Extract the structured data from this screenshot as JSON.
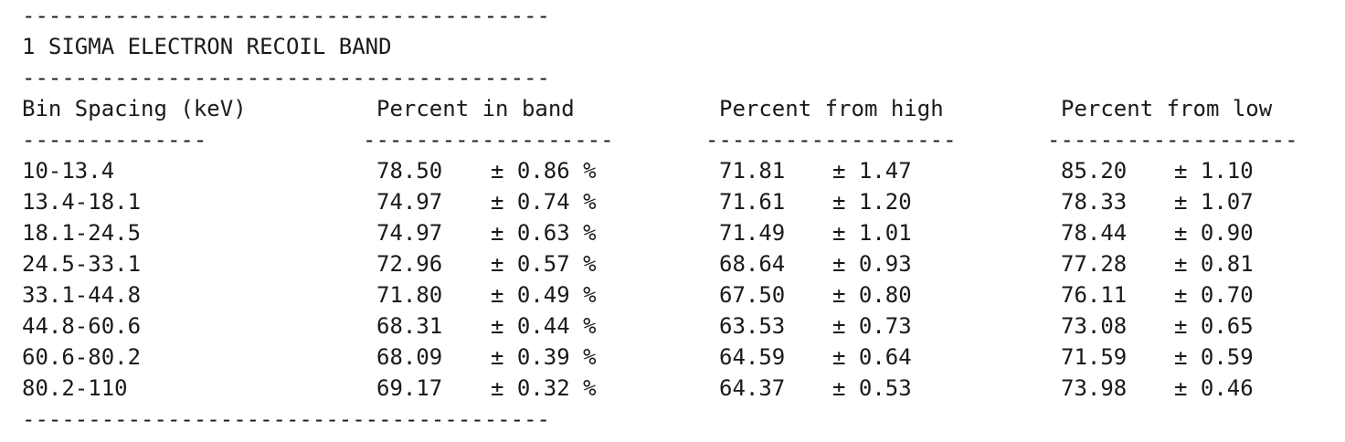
{
  "rule_long": "----------------------------------------",
  "title": "1 SIGMA ELECTRON RECOIL BAND",
  "headers": {
    "bin": "Bin Spacing (keV)",
    "in_band": "Percent in band",
    "from_high": "Percent from high",
    "from_low": "Percent from low"
  },
  "underlines": {
    "bin": "--------------",
    "in_band": "-------------------",
    "from_high": "-------------------",
    "from_low": "-------------------"
  },
  "rows": [
    {
      "bin": "10-13.4",
      "in_band": "78.50",
      "in_band_err": "± 0.86 %",
      "from_high": "71.81",
      "from_high_err": "± 1.47",
      "from_low": "85.20",
      "from_low_err": "± 1.10"
    },
    {
      "bin": "13.4-18.1",
      "in_band": "74.97",
      "in_band_err": "± 0.74 %",
      "from_high": "71.61",
      "from_high_err": "± 1.20",
      "from_low": "78.33",
      "from_low_err": "± 1.07"
    },
    {
      "bin": "18.1-24.5",
      "in_band": "74.97",
      "in_band_err": "± 0.63 %",
      "from_high": "71.49",
      "from_high_err": "± 1.01",
      "from_low": "78.44",
      "from_low_err": "± 0.90"
    },
    {
      "bin": "24.5-33.1",
      "in_band": "72.96",
      "in_band_err": "± 0.57 %",
      "from_high": "68.64",
      "from_high_err": "± 0.93",
      "from_low": "77.28",
      "from_low_err": "± 0.81"
    },
    {
      "bin": "33.1-44.8",
      "in_band": "71.80",
      "in_band_err": "± 0.49 %",
      "from_high": "67.50",
      "from_high_err": "± 0.80",
      "from_low": "76.11",
      "from_low_err": "± 0.70"
    },
    {
      "bin": "44.8-60.6",
      "in_band": "68.31",
      "in_band_err": "± 0.44 %",
      "from_high": "63.53",
      "from_high_err": "± 0.73",
      "from_low": "73.08",
      "from_low_err": "± 0.65"
    },
    {
      "bin": "60.6-80.2",
      "in_band": "68.09",
      "in_band_err": "± 0.39 %",
      "from_high": "64.59",
      "from_high_err": "± 0.64",
      "from_low": "71.59",
      "from_low_err": "± 0.59"
    },
    {
      "bin": "80.2-110",
      "in_band": "69.17",
      "in_band_err": "± 0.32 %",
      "from_high": "64.37",
      "from_high_err": "± 0.53",
      "from_low": "73.98",
      "from_low_err": "± 0.46"
    }
  ]
}
